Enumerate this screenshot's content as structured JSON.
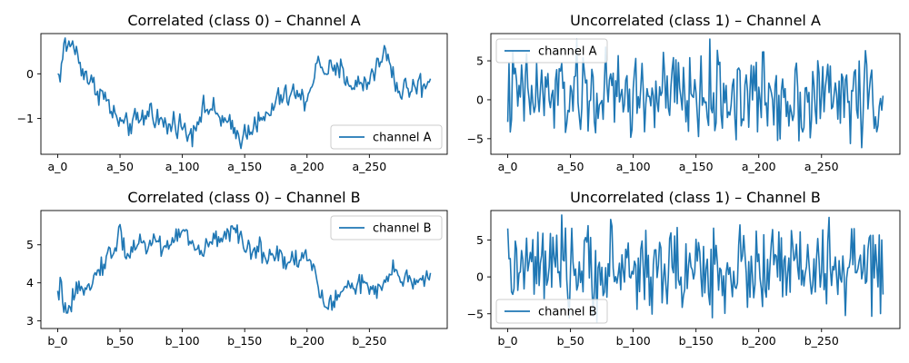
{
  "chart_data": [
    {
      "type": "line",
      "title": "Correlated (class 0) – Channel A",
      "x_range": [
        0,
        299
      ],
      "xticks": [
        0,
        50,
        100,
        150,
        200,
        250
      ],
      "xtick_labels": [
        "a_0",
        "a_50",
        "a_100",
        "a_150",
        "a_200",
        "a_250"
      ],
      "ylim": [
        -1.8,
        0.9
      ],
      "yticks": [
        -1,
        0
      ],
      "ytick_labels": [
        "−1",
        "0"
      ],
      "legend_position": "lower-right",
      "series": [
        {
          "name": "channel A",
          "color": "#1f77b4",
          "keypoints": [
            [
              0,
              -0.05
            ],
            [
              3,
              0.1
            ],
            [
              5,
              0.7
            ],
            [
              8,
              0.5
            ],
            [
              10,
              0.75
            ],
            [
              14,
              0.55
            ],
            [
              18,
              0.2
            ],
            [
              22,
              0.05
            ],
            [
              26,
              -0.2
            ],
            [
              30,
              -0.3
            ],
            [
              34,
              -0.4
            ],
            [
              38,
              -0.55
            ],
            [
              42,
              -0.75
            ],
            [
              45,
              -0.95
            ],
            [
              48,
              -1.0
            ],
            [
              52,
              -1.15
            ],
            [
              56,
              -1.2
            ],
            [
              60,
              -1.05
            ],
            [
              64,
              -1.1
            ],
            [
              68,
              -1.0
            ],
            [
              72,
              -0.9
            ],
            [
              75,
              -0.75
            ],
            [
              78,
              -0.95
            ],
            [
              82,
              -1.05
            ],
            [
              86,
              -1.15
            ],
            [
              90,
              -1.2
            ],
            [
              94,
              -1.05
            ],
            [
              98,
              -1.1
            ],
            [
              102,
              -1.3
            ],
            [
              106,
              -1.35
            ],
            [
              110,
              -1.15
            ],
            [
              114,
              -0.9
            ],
            [
              118,
              -0.8
            ],
            [
              122,
              -0.75
            ],
            [
              126,
              -0.9
            ],
            [
              130,
              -0.95
            ],
            [
              134,
              -1.1
            ],
            [
              138,
              -1.2
            ],
            [
              142,
              -1.3
            ],
            [
              146,
              -1.4
            ],
            [
              150,
              -1.35
            ],
            [
              154,
              -1.2
            ],
            [
              158,
              -1.05
            ],
            [
              162,
              -1.15
            ],
            [
              166,
              -1.0
            ],
            [
              170,
              -0.9
            ],
            [
              174,
              -0.7
            ],
            [
              178,
              -0.5
            ],
            [
              182,
              -0.55
            ],
            [
              186,
              -0.5
            ],
            [
              190,
              -0.4
            ],
            [
              194,
              -0.55
            ],
            [
              198,
              -0.6
            ],
            [
              202,
              -0.4
            ],
            [
              205,
              -0.05
            ],
            [
              208,
              0.2
            ],
            [
              212,
              0.15
            ],
            [
              216,
              0.1
            ],
            [
              220,
              0.05
            ],
            [
              224,
              0.0
            ],
            [
              228,
              0.1
            ],
            [
              232,
              -0.1
            ],
            [
              236,
              -0.25
            ],
            [
              240,
              -0.3
            ],
            [
              244,
              -0.15
            ],
            [
              248,
              -0.25
            ],
            [
              252,
              0.05
            ],
            [
              256,
              0.2
            ],
            [
              260,
              0.25
            ],
            [
              263,
              0.55
            ],
            [
              266,
              0.3
            ],
            [
              270,
              -0.1
            ],
            [
              274,
              -0.45
            ],
            [
              278,
              -0.3
            ],
            [
              282,
              -0.35
            ],
            [
              286,
              -0.3
            ],
            [
              290,
              -0.2
            ],
            [
              294,
              -0.3
            ],
            [
              299,
              -0.05
            ]
          ],
          "noise": 0.14
        }
      ]
    },
    {
      "type": "line",
      "title": "Uncorrelated (class 1) – Channel A",
      "x_range": [
        0,
        299
      ],
      "xticks": [
        0,
        50,
        100,
        150,
        200,
        250
      ],
      "xtick_labels": [
        "a_0",
        "a_50",
        "a_100",
        "a_150",
        "a_200",
        "a_250"
      ],
      "ylim": [
        -7,
        8.5
      ],
      "yticks": [
        -5,
        0,
        5
      ],
      "ytick_labels": [
        "−5",
        "0",
        "5"
      ],
      "legend_position": "upper-left",
      "series": [
        {
          "name": "channel A",
          "color": "#1f77b4",
          "keypoints": [
            [
              0,
              0.5
            ],
            [
              299,
              0.5
            ]
          ],
          "noise": 2.9,
          "clip": [
            -6.3,
            7.8
          ]
        }
      ]
    },
    {
      "type": "line",
      "title": "Correlated (class 0) – Channel B",
      "x_range": [
        0,
        299
      ],
      "xticks": [
        0,
        50,
        100,
        150,
        200,
        250
      ],
      "xtick_labels": [
        "b_0",
        "b_50",
        "b_100",
        "b_150",
        "b_200",
        "b_250"
      ],
      "ylim": [
        2.8,
        5.9
      ],
      "yticks": [
        3,
        4,
        5
      ],
      "ytick_labels": [
        "3",
        "4",
        "5"
      ],
      "legend_position": "upper-right",
      "series": [
        {
          "name": "channel B",
          "color": "#1f77b4",
          "keypoints": [
            [
              0,
              3.6
            ],
            [
              3,
              3.9
            ],
            [
              6,
              3.3
            ],
            [
              9,
              3.1
            ],
            [
              12,
              3.5
            ],
            [
              16,
              3.7
            ],
            [
              20,
              3.9
            ],
            [
              24,
              4.1
            ],
            [
              28,
              4.0
            ],
            [
              32,
              4.3
            ],
            [
              36,
              4.5
            ],
            [
              40,
              4.7
            ],
            [
              44,
              4.8
            ],
            [
              48,
              5.0
            ],
            [
              50,
              5.5
            ],
            [
              53,
              5.0
            ],
            [
              56,
              4.7
            ],
            [
              60,
              4.9
            ],
            [
              64,
              5.1
            ],
            [
              68,
              5.0
            ],
            [
              72,
              4.9
            ],
            [
              76,
              5.2
            ],
            [
              80,
              5.1
            ],
            [
              84,
              4.9
            ],
            [
              88,
              5.0
            ],
            [
              92,
              5.1
            ],
            [
              96,
              5.2
            ],
            [
              100,
              5.5
            ],
            [
              103,
              5.3
            ],
            [
              106,
              5.0
            ],
            [
              110,
              4.9
            ],
            [
              114,
              4.8
            ],
            [
              118,
              4.9
            ],
            [
              122,
              5.0
            ],
            [
              126,
              5.1
            ],
            [
              130,
              5.2
            ],
            [
              134,
              5.3
            ],
            [
              138,
              5.4
            ],
            [
              142,
              5.3
            ],
            [
              146,
              5.1
            ],
            [
              150,
              5.0
            ],
            [
              154,
              4.9
            ],
            [
              158,
              4.8
            ],
            [
              162,
              4.9
            ],
            [
              166,
              4.7
            ],
            [
              170,
              4.8
            ],
            [
              174,
              4.7
            ],
            [
              178,
              4.8
            ],
            [
              182,
              4.6
            ],
            [
              186,
              4.6
            ],
            [
              190,
              4.7
            ],
            [
              194,
              4.6
            ],
            [
              198,
              4.7
            ],
            [
              202,
              4.6
            ],
            [
              206,
              4.4
            ],
            [
              209,
              3.7
            ],
            [
              212,
              3.6
            ],
            [
              216,
              3.5
            ],
            [
              220,
              3.4
            ],
            [
              224,
              3.6
            ],
            [
              228,
              3.8
            ],
            [
              232,
              3.9
            ],
            [
              236,
              4.0
            ],
            [
              240,
              3.9
            ],
            [
              244,
              4.0
            ],
            [
              248,
              3.9
            ],
            [
              252,
              3.8
            ],
            [
              256,
              3.7
            ],
            [
              260,
              3.8
            ],
            [
              264,
              4.1
            ],
            [
              268,
              4.3
            ],
            [
              272,
              4.2
            ],
            [
              276,
              4.1
            ],
            [
              280,
              4.2
            ],
            [
              284,
              4.0
            ],
            [
              288,
              4.1
            ],
            [
              292,
              4.2
            ],
            [
              296,
              4.1
            ],
            [
              299,
              4.2
            ]
          ],
          "noise": 0.14
        }
      ]
    },
    {
      "type": "line",
      "title": "Uncorrelated (class 1) – Channel B",
      "x_range": [
        0,
        299
      ],
      "xticks": [
        0,
        50,
        100,
        150,
        200,
        250
      ],
      "xtick_labels": [
        "b_0",
        "b_50",
        "b_100",
        "b_150",
        "b_200",
        "b_250"
      ],
      "ylim": [
        -7,
        9
      ],
      "yticks": [
        -5,
        0,
        5
      ],
      "ytick_labels": [
        "−5",
        "0",
        "5"
      ],
      "legend_position": "lower-left",
      "series": [
        {
          "name": "channel B",
          "color": "#1f77b4",
          "keypoints": [
            [
              0,
              1.0
            ],
            [
              299,
              1.0
            ]
          ],
          "noise": 3.0,
          "clip": [
            -6.2,
            8.4
          ]
        }
      ]
    }
  ]
}
